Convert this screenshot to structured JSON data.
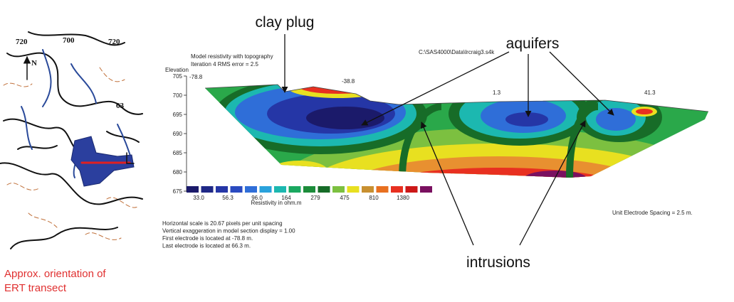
{
  "map": {
    "contour_labels": [
      "720",
      "700",
      "720"
    ],
    "north": "N",
    "spot_label": "63",
    "caption": [
      "Approx. orientation of",
      "ERT transect"
    ]
  },
  "annotations": {
    "clay_plug": "clay plug",
    "aquifers": "aquifers",
    "intrusions": "intrusions"
  },
  "section": {
    "file_path": "C:\\SAS4000\\Data\\lrcraig3.s4k",
    "header": [
      "Model resistivity with topography",
      "Iteration 4 RMS error = 2.5"
    ],
    "elevation_label": "Elevation",
    "elevation_ticks": [
      705,
      700,
      695,
      690,
      685,
      680,
      675
    ],
    "distance_labels": [
      "-78.8",
      "-38.8",
      "1.3",
      "41.3"
    ],
    "color_scale": {
      "colors": [
        "#1b1a6a",
        "#1f2886",
        "#2536a6",
        "#2a4ac0",
        "#2f6ed8",
        "#2aa2dc",
        "#1cb8b0",
        "#1aa860",
        "#1c8c3a",
        "#176c28",
        "#7cc040",
        "#e8e020",
        "#c89030",
        "#e87020",
        "#e83020",
        "#cc1818",
        "#7a1060"
      ],
      "labels": [
        "33.0",
        "56.3",
        "96.0",
        "164",
        "279",
        "475",
        "810",
        "1380"
      ],
      "title": "Resistivity in ohm.m"
    },
    "notes": [
      "Horizontal scale is 20.67 pixels per unit spacing",
      "Vertical exaggeration in model section display = 1.00",
      "First electrode is located at -78.8  m.",
      "Last electrode is located at 66.3 m."
    ],
    "spacing_note": "Unit Electrode Spacing = 2.5 m."
  }
}
